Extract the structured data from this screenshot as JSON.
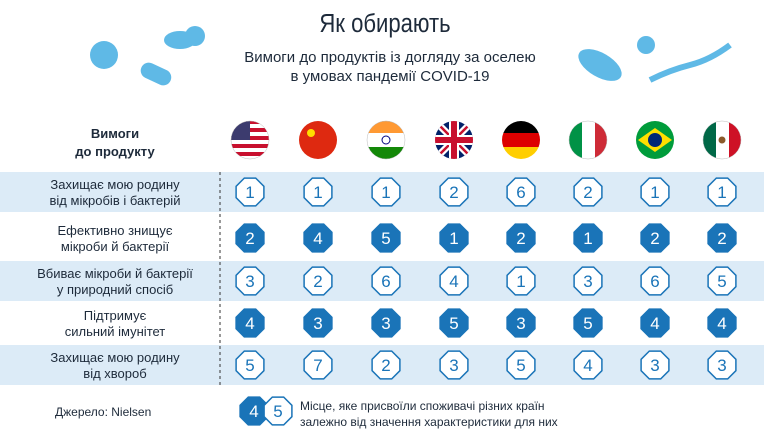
{
  "header": {
    "title": "Як обирають",
    "subtitle_lines": [
      "Вимоги до продуктів із догляду за оселею",
      "в умовах пандемії COVID-19"
    ]
  },
  "table": {
    "header_label_lines": [
      "Вимоги",
      "до продукту"
    ],
    "rows": [
      {
        "label_lines": [
          "Захищає мою родину",
          "від мікробів і бактерій"
        ],
        "ranks": [
          "1",
          "1",
          "1",
          "2",
          "6",
          "2",
          "1",
          "1"
        ]
      },
      {
        "label_lines": [
          "Ефективно знищує",
          "мікроби й бактерії"
        ],
        "ranks": [
          "2",
          "4",
          "5",
          "1",
          "2",
          "1",
          "2",
          "2"
        ]
      },
      {
        "label_lines": [
          "Вбиває мікроби й бактерії",
          "у природний спосіб"
        ],
        "ranks": [
          "3",
          "2",
          "6",
          "4",
          "1",
          "3",
          "6",
          "5"
        ]
      },
      {
        "label_lines": [
          "Підтримує",
          "сильний імунітет"
        ],
        "ranks": [
          "4",
          "3",
          "3",
          "5",
          "3",
          "5",
          "4",
          "4"
        ]
      },
      {
        "label_lines": [
          "Захищає мою родину",
          "від хвороб"
        ],
        "ranks": [
          "5",
          "7",
          "2",
          "3",
          "5",
          "4",
          "3",
          "3"
        ]
      }
    ]
  },
  "footer": {
    "source": "Джерело: Nielsen",
    "legend_samples": [
      "4",
      "5"
    ],
    "legend_lines": [
      "Місце, яке присвоїли споживачі різних країн",
      "залежно від значення характеристики для них"
    ]
  }
}
